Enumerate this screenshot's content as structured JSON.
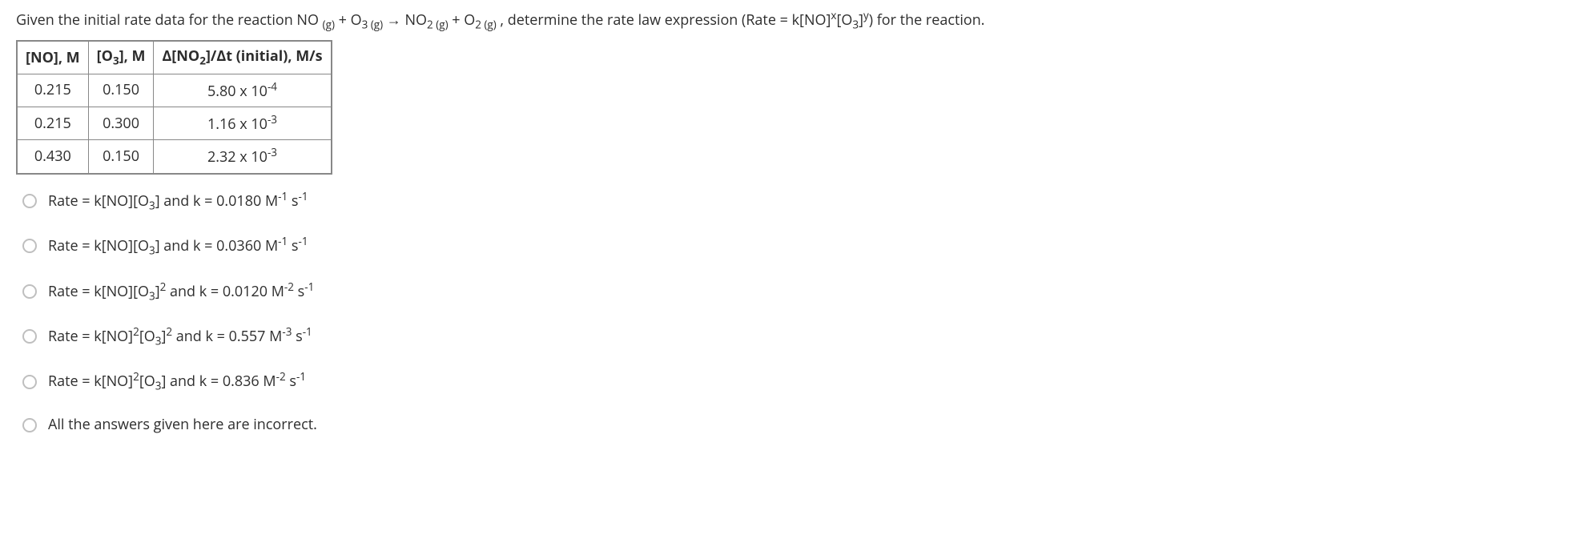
{
  "question": {
    "prefix": "Given the initial rate data for the reaction NO ",
    "sub1": "(g)",
    "plus1": " + O",
    "o3sub": "3 (g)",
    "arrow": " → NO",
    "no2sub": "2 (g)",
    "plus2": " + O",
    "o2sub": "2 (g)",
    "mid": " , determine the rate law expression (Rate = k[NO]",
    "xexp": "x",
    "mid2": "[O",
    "mid3": "3",
    "brack": "]",
    "yexp": "y",
    "tail": ") for the reaction."
  },
  "table": {
    "h1": "[NO], M",
    "h2a": "[O",
    "h2b": "3",
    "h2c": "], M",
    "h3a": "Δ[NO",
    "h3b": "2",
    "h3c": "]/Δt (initial), M/s",
    "r1c1": "0.215",
    "r1c2": "0.150",
    "r1c3a": "5.80 x 10",
    "r1c3b": "-4",
    "r2c1": "0.215",
    "r2c2": "0.300",
    "r2c3a": "1.16 x 10",
    "r2c3b": "-3",
    "r3c1": "0.430",
    "r3c2": "0.150",
    "r3c3a": "2.32 x 10",
    "r3c3b": "-3"
  },
  "opts": {
    "a1": "Rate = k[NO][O",
    "a2": "3",
    "a3": "] and k = 0.0180 M",
    "a4": "-1",
    "a5": " s",
    "a6": "-1",
    "b1": "Rate = k[NO][O",
    "b2": "3",
    "b3": "] and k = 0.0360 M",
    "b4": "-1",
    "b5": " s",
    "b6": "-1",
    "c1": "Rate = k[NO][O",
    "c2": "3",
    "c3": "]",
    "c4": "2",
    "c5": " and k = 0.0120 M",
    "c6": "-2",
    "c7": " s",
    "c8": "-1",
    "d1": "Rate = k[NO]",
    "d2": "2",
    "d3": "[O",
    "d4": "3",
    "d5": "]",
    "d6": "2",
    "d7": " and k = 0.557 M",
    "d8": "-3",
    "d9": " s",
    "d10": "-1",
    "e1": "Rate = k[NO]",
    "e2": "2",
    "e3": "[O",
    "e4": "3",
    "e5": "] and k = 0.836 M",
    "e6": "-2",
    "e7": " s",
    "e8": "-1",
    "f": "All the answers given here are incorrect."
  }
}
